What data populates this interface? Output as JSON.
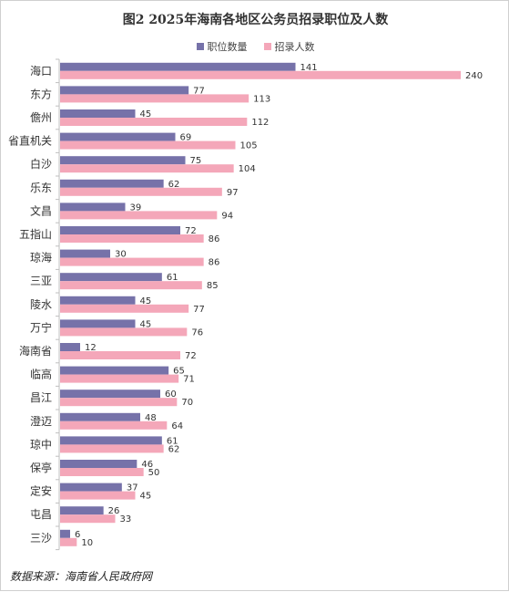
{
  "chart_data": {
    "type": "bar",
    "orientation": "horizontal",
    "title": "图2 2025年海南各地区公务员招录职位及人数",
    "categories": [
      "海口",
      "东方",
      "儋州",
      "省直机关",
      "白沙",
      "乐东",
      "文昌",
      "五指山",
      "琼海",
      "三亚",
      "陵水",
      "万宁",
      "海南省",
      "临高",
      "昌江",
      "澄迈",
      "琼中",
      "保亭",
      "定安",
      "屯昌",
      "三沙"
    ],
    "series": [
      {
        "name": "职位数量",
        "color": "#7672a9",
        "values": [
          141,
          77,
          45,
          69,
          75,
          62,
          39,
          72,
          30,
          61,
          45,
          45,
          12,
          65,
          60,
          48,
          61,
          46,
          37,
          26,
          6
        ]
      },
      {
        "name": "招录人数",
        "color": "#f4a7b9",
        "values": [
          240,
          113,
          112,
          105,
          104,
          97,
          94,
          86,
          86,
          85,
          77,
          76,
          72,
          71,
          70,
          64,
          62,
          50,
          45,
          33,
          10
        ]
      }
    ],
    "xlim": [
      0,
      250
    ],
    "legend_position": "top",
    "grid": false
  },
  "source_text": "数据来源：海南省人民政府网"
}
